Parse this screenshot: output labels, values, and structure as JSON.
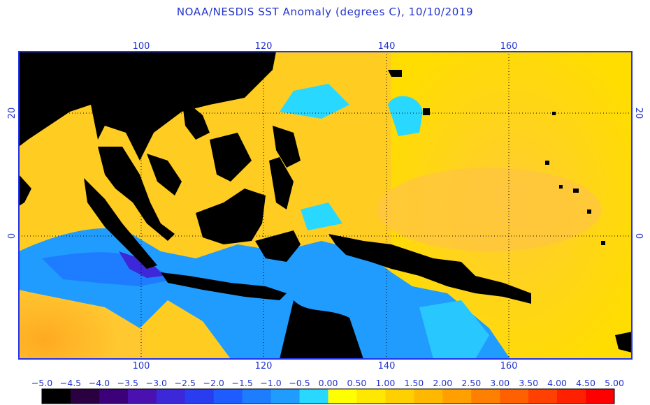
{
  "title": "NOAA/NESDIS SST Anomaly (degrees C), 10/10/2019",
  "map": {
    "lon_range": [
      80,
      181
    ],
    "lat_range": [
      -20,
      30
    ],
    "lon_ticks": [
      "100",
      "120",
      "140",
      "160"
    ],
    "lat_ticks": [
      "20",
      "0"
    ],
    "grid": true,
    "land_color": "#000000",
    "frame_color": "#2233ee",
    "label_color": "#2233cc"
  },
  "colorbar": {
    "labels": [
      "−5.0",
      "−4.5",
      "−4.0",
      "−3.5",
      "−3.0",
      "−2.5",
      "−2.0",
      "−1.5",
      "−1.0",
      "−0.5",
      "0.00",
      "0.50",
      "1.00",
      "1.50",
      "2.00",
      "2.50",
      "3.00",
      "3.50",
      "4.00",
      "4.50",
      "5.00"
    ],
    "colors": [
      "#000000",
      "#2a0040",
      "#3c0078",
      "#4a10b0",
      "#3c28d8",
      "#2a3cf0",
      "#1e5cff",
      "#1e7cff",
      "#209cff",
      "#28d8ff",
      "#ffff00",
      "#ffe800",
      "#ffd000",
      "#ffb800",
      "#ffa000",
      "#ff8000",
      "#ff6000",
      "#ff4000",
      "#ff2000",
      "#ff0000"
    ]
  }
}
